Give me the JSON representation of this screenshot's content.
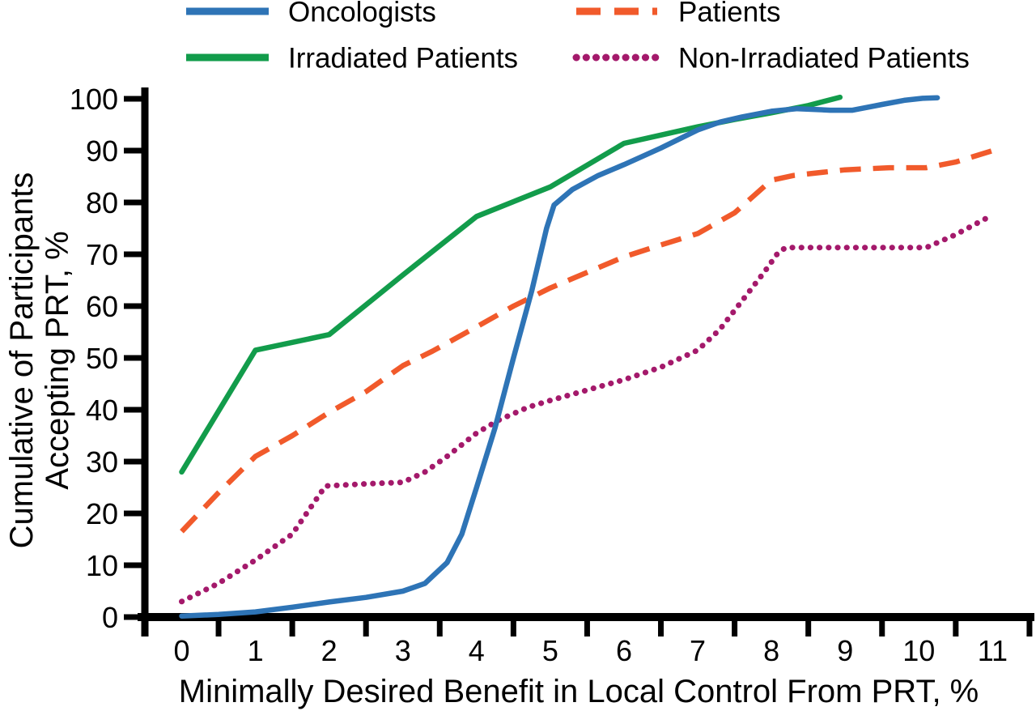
{
  "chart_data": {
    "type": "line",
    "title": "",
    "xlabel": "Minimally Desired Benefit in Local Control From PRT, %",
    "ylabel": "Cumulative of Participants Accepting PRT, %",
    "ylabel_lines": [
      "Cumulative of Participants",
      "Accepting PRT, %"
    ],
    "xlim": [
      -0.5,
      11.6
    ],
    "ylim": [
      0,
      102
    ],
    "grid": false,
    "legend_position": "top",
    "x_tick_labels": [
      "0",
      "1",
      "2",
      "3",
      "4",
      "5",
      "6",
      "7",
      "8",
      "9",
      "10",
      "11"
    ],
    "y_tick_values": [
      0,
      10,
      20,
      30,
      40,
      50,
      60,
      70,
      80,
      90,
      100
    ],
    "y_tick_labels": [
      "0",
      "10",
      "20",
      "30",
      "40",
      "50",
      "60",
      "70",
      "80",
      "90",
      "100"
    ],
    "series": [
      {
        "name": "Oncologists",
        "color": "#2E74B6",
        "style": "solid",
        "points": [
          [
            0,
            0.2
          ],
          [
            0.5,
            0.5
          ],
          [
            1,
            1
          ],
          [
            1.5,
            1.9
          ],
          [
            2,
            2.9
          ],
          [
            2.5,
            3.8
          ],
          [
            3,
            5
          ],
          [
            3.3,
            6.5
          ],
          [
            3.6,
            10.5
          ],
          [
            3.8,
            16
          ],
          [
            4,
            25
          ],
          [
            4.25,
            36.5
          ],
          [
            4.5,
            50
          ],
          [
            4.75,
            63
          ],
          [
            4.95,
            75
          ],
          [
            5.05,
            79.5
          ],
          [
            5.3,
            82.5
          ],
          [
            5.65,
            85.2
          ],
          [
            6,
            87.3
          ],
          [
            6.5,
            90.5
          ],
          [
            7,
            94
          ],
          [
            7.3,
            95.5
          ],
          [
            7.6,
            96.5
          ],
          [
            8,
            97.6
          ],
          [
            8.35,
            98.1
          ],
          [
            8.8,
            97.8
          ],
          [
            9.1,
            97.8
          ],
          [
            9.5,
            98.9
          ],
          [
            9.8,
            99.7
          ],
          [
            10.05,
            100.1
          ],
          [
            10.25,
            100.2
          ]
        ]
      },
      {
        "name": "Patients",
        "color": "#F15A2B",
        "style": "dashed",
        "points": [
          [
            0,
            16.5
          ],
          [
            0.5,
            24
          ],
          [
            1,
            31
          ],
          [
            1.5,
            35
          ],
          [
            2,
            39.5
          ],
          [
            2.5,
            43.5
          ],
          [
            3,
            48.5
          ],
          [
            3.4,
            51.3
          ],
          [
            4,
            56
          ],
          [
            4.5,
            60
          ],
          [
            5,
            63.5
          ],
          [
            5.5,
            66.5
          ],
          [
            6,
            69.5
          ],
          [
            6.5,
            71.8
          ],
          [
            7,
            74
          ],
          [
            7.5,
            78
          ],
          [
            8,
            84.3
          ],
          [
            8.3,
            85.2
          ],
          [
            9,
            86.3
          ],
          [
            9.6,
            86.7
          ],
          [
            10.1,
            86.7
          ],
          [
            10.5,
            87.8
          ],
          [
            11,
            90
          ]
        ]
      },
      {
        "name": "Irradiated Patients",
        "color": "#129C4B",
        "style": "solid",
        "points": [
          [
            0,
            28
          ],
          [
            1,
            51.5
          ],
          [
            2,
            54.5
          ],
          [
            3,
            66
          ],
          [
            4,
            77.3
          ],
          [
            5,
            83
          ],
          [
            6,
            91.4
          ],
          [
            6.5,
            93
          ],
          [
            7,
            94.6
          ],
          [
            7.5,
            96
          ],
          [
            8,
            97.3
          ],
          [
            8.5,
            98.7
          ],
          [
            8.93,
            100.3
          ]
        ]
      },
      {
        "name": "Non-Irradiated Patients",
        "color": "#A4196B",
        "style": "dotted",
        "points": [
          [
            0,
            3
          ],
          [
            0.5,
            6.5
          ],
          [
            1,
            11
          ],
          [
            1.5,
            16
          ],
          [
            1.95,
            25.3
          ],
          [
            2.5,
            25.7
          ],
          [
            3,
            26
          ],
          [
            3.3,
            28
          ],
          [
            3.6,
            31
          ],
          [
            4,
            35.5
          ],
          [
            4.3,
            38
          ],
          [
            4.7,
            40.5
          ],
          [
            5,
            41.8
          ],
          [
            5.5,
            43.8
          ],
          [
            6,
            45.8
          ],
          [
            6.5,
            48.2
          ],
          [
            7,
            51.5
          ],
          [
            7.3,
            55.5
          ],
          [
            7.6,
            61
          ],
          [
            7.9,
            66.5
          ],
          [
            8.1,
            70.5
          ],
          [
            8.2,
            71.3
          ],
          [
            9,
            71.3
          ],
          [
            10.1,
            71.3
          ],
          [
            10.5,
            73.8
          ],
          [
            11,
            77.6
          ]
        ]
      }
    ],
    "legend_order": [
      "Oncologists",
      "Patients",
      "Irradiated Patients",
      "Non-Irradiated Patients"
    ]
  }
}
